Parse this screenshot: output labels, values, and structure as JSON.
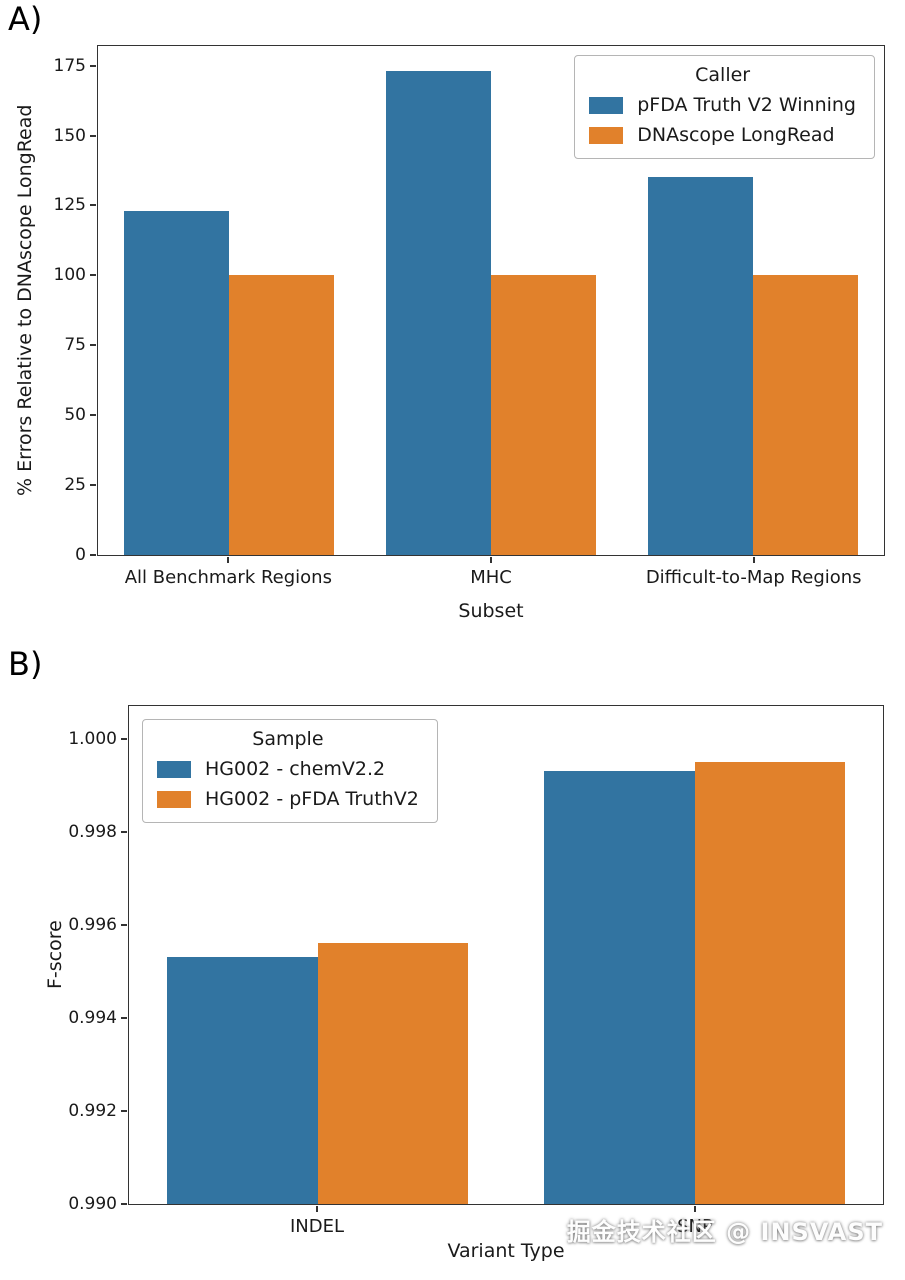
{
  "page": {
    "panel_a_label": "A)",
    "panel_b_label": "B)",
    "watermark": "掘金技术社区 @ INSVAST"
  },
  "chart_data": [
    {
      "type": "bar",
      "panel": "A",
      "title": "",
      "xlabel": "Subset",
      "ylabel": "% Errors Relative to DNAscope LongRead",
      "categories": [
        "All Benchmark Regions",
        "MHC",
        "Difficult-to-Map Regions"
      ],
      "series": [
        {
          "name": "pFDA Truth V2 Winning",
          "color": "#3274a1",
          "values": [
            123,
            173,
            135
          ]
        },
        {
          "name": "DNAscope LongRead",
          "color": "#e1812b",
          "values": [
            100,
            100,
            100
          ]
        }
      ],
      "legend_title": "Caller",
      "legend_position": "top-right",
      "ylim": [
        0,
        182
      ],
      "ytick_values": [
        0,
        25,
        50,
        75,
        100,
        125,
        150,
        175
      ],
      "ytick_labels": [
        "0",
        "25",
        "50",
        "75",
        "100",
        "125",
        "150",
        "175"
      ],
      "grid": false
    },
    {
      "type": "bar",
      "panel": "B",
      "title": "",
      "xlabel": "Variant Type",
      "ylabel": "F-score",
      "categories": [
        "INDEL",
        "SNP"
      ],
      "series": [
        {
          "name": "HG002 - chemV2.2",
          "color": "#3274a1",
          "values": [
            0.9953,
            0.9993
          ]
        },
        {
          "name": "HG002 - pFDA TruthV2",
          "color": "#e1812b",
          "values": [
            0.9956,
            0.9995
          ]
        }
      ],
      "legend_title": "Sample",
      "legend_position": "top-left",
      "ylim": [
        0.99,
        1.0007
      ],
      "ytick_values": [
        0.99,
        0.992,
        0.994,
        0.996,
        0.998,
        1.0
      ],
      "ytick_labels": [
        "0.990",
        "0.992",
        "0.994",
        "0.996",
        "0.998",
        "1.000"
      ],
      "grid": false
    }
  ]
}
